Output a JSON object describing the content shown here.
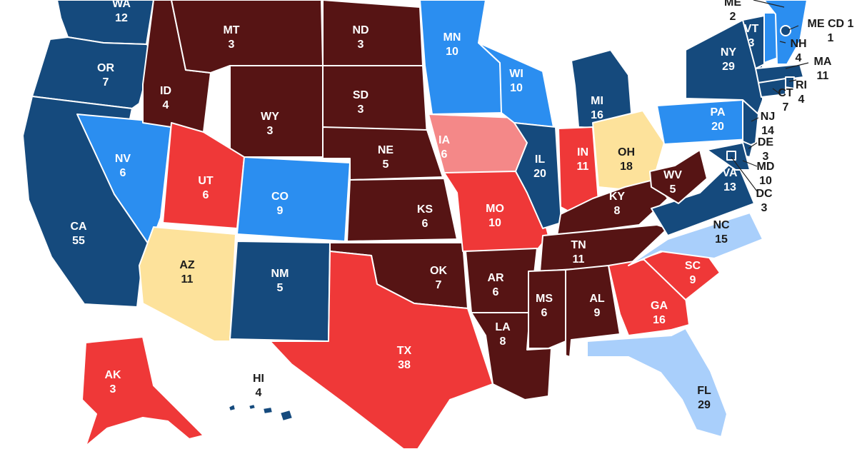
{
  "colors": {
    "safe_d": "#154a7d",
    "likely_d": "#2b8ef0",
    "lean_d": "#a9cffb",
    "tossup": "#fde29b",
    "lean_r": "#f48888",
    "likely_r": "#ef3838",
    "safe_r": "#561414"
  },
  "states": [
    {
      "abbr": "WA",
      "ev": "12",
      "rating": "safe_d"
    },
    {
      "abbr": "OR",
      "ev": "7",
      "rating": "safe_d"
    },
    {
      "abbr": "CA",
      "ev": "55",
      "rating": "safe_d"
    },
    {
      "abbr": "NV",
      "ev": "6",
      "rating": "likely_d"
    },
    {
      "abbr": "ID",
      "ev": "4",
      "rating": "safe_r"
    },
    {
      "abbr": "MT",
      "ev": "3",
      "rating": "safe_r"
    },
    {
      "abbr": "WY",
      "ev": "3",
      "rating": "safe_r"
    },
    {
      "abbr": "UT",
      "ev": "6",
      "rating": "likely_r"
    },
    {
      "abbr": "AZ",
      "ev": "11",
      "rating": "tossup"
    },
    {
      "abbr": "CO",
      "ev": "9",
      "rating": "likely_d"
    },
    {
      "abbr": "NM",
      "ev": "5",
      "rating": "safe_d"
    },
    {
      "abbr": "ND",
      "ev": "3",
      "rating": "safe_r"
    },
    {
      "abbr": "SD",
      "ev": "3",
      "rating": "safe_r"
    },
    {
      "abbr": "NE",
      "ev": "5",
      "rating": "safe_r"
    },
    {
      "abbr": "KS",
      "ev": "6",
      "rating": "safe_r"
    },
    {
      "abbr": "OK",
      "ev": "7",
      "rating": "safe_r"
    },
    {
      "abbr": "TX",
      "ev": "38",
      "rating": "likely_r"
    },
    {
      "abbr": "MN",
      "ev": "10",
      "rating": "likely_d"
    },
    {
      "abbr": "IA",
      "ev": "6",
      "rating": "lean_r"
    },
    {
      "abbr": "MO",
      "ev": "10",
      "rating": "likely_r"
    },
    {
      "abbr": "AR",
      "ev": "6",
      "rating": "safe_r"
    },
    {
      "abbr": "LA",
      "ev": "8",
      "rating": "safe_r"
    },
    {
      "abbr": "WI",
      "ev": "10",
      "rating": "likely_d"
    },
    {
      "abbr": "IL",
      "ev": "20",
      "rating": "safe_d"
    },
    {
      "abbr": "MI",
      "ev": "16",
      "rating": "safe_d"
    },
    {
      "abbr": "IN",
      "ev": "11",
      "rating": "likely_r"
    },
    {
      "abbr": "OH",
      "ev": "18",
      "rating": "tossup"
    },
    {
      "abbr": "KY",
      "ev": "8",
      "rating": "safe_r"
    },
    {
      "abbr": "TN",
      "ev": "11",
      "rating": "safe_r"
    },
    {
      "abbr": "MS",
      "ev": "6",
      "rating": "safe_r"
    },
    {
      "abbr": "AL",
      "ev": "9",
      "rating": "safe_r"
    },
    {
      "abbr": "GA",
      "ev": "16",
      "rating": "likely_r"
    },
    {
      "abbr": "FL",
      "ev": "29",
      "rating": "lean_d"
    },
    {
      "abbr": "SC",
      "ev": "9",
      "rating": "likely_r"
    },
    {
      "abbr": "NC",
      "ev": "15",
      "rating": "lean_d"
    },
    {
      "abbr": "VA",
      "ev": "13",
      "rating": "safe_d"
    },
    {
      "abbr": "WV",
      "ev": "5",
      "rating": "safe_r"
    },
    {
      "abbr": "PA",
      "ev": "20",
      "rating": "likely_d"
    },
    {
      "abbr": "NY",
      "ev": "29",
      "rating": "safe_d"
    },
    {
      "abbr": "VT",
      "ev": "3",
      "rating": "safe_d"
    },
    {
      "abbr": "NH",
      "ev": "4",
      "rating": "likely_d"
    },
    {
      "abbr": "MA",
      "ev": "11",
      "rating": "safe_d"
    },
    {
      "abbr": "RI",
      "ev": "4",
      "rating": "safe_d"
    },
    {
      "abbr": "CT",
      "ev": "7",
      "rating": "safe_d"
    },
    {
      "abbr": "NJ",
      "ev": "14",
      "rating": "safe_d"
    },
    {
      "abbr": "DE",
      "ev": "3",
      "rating": "safe_d"
    },
    {
      "abbr": "MD",
      "ev": "10",
      "rating": "safe_d"
    },
    {
      "abbr": "DC",
      "ev": "3",
      "rating": "safe_d"
    },
    {
      "abbr": "ME",
      "ev": "2",
      "rating": "likely_d"
    },
    {
      "abbr": "ME CD 1",
      "ev": "1",
      "rating": "safe_d"
    },
    {
      "abbr": "AK",
      "ev": "3",
      "rating": "likely_r"
    },
    {
      "abbr": "HI",
      "ev": "4",
      "rating": "safe_d"
    }
  ]
}
